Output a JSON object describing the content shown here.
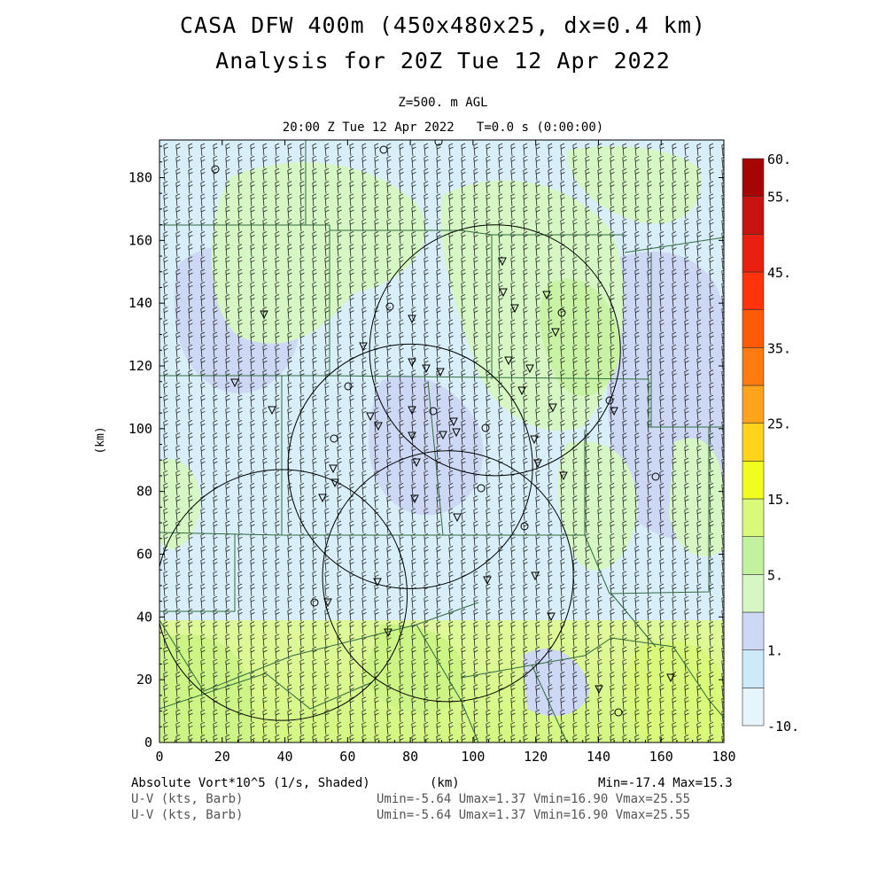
{
  "header": {
    "title_line1": "CASA DFW 400m (450x480x25, dx=0.4 km)",
    "title_line2": "Analysis for 20Z Tue 12 Apr 2022",
    "level": "Z=500. m AGL",
    "time": "20:00 Z Tue 12 Apr 2022   T=0.0 s (0:00:00)"
  },
  "footer": {
    "field1": "Absolute Vort*10^5 (1/s, Shaded)",
    "xunit": "(km)",
    "minmax": "Min=-17.4 Max=15.3",
    "field2": "U-V (kts, Barb)",
    "field3": "U-V (kts, Barb)",
    "uv2": "Umin=-5.64 Umax=1.37 Vmin=16.90 Vmax=25.55",
    "uv3": "Umin=-5.64 Umax=1.37 Vmin=16.90 Vmax=25.55"
  },
  "chart_data": {
    "type": "heatmap",
    "xlabel": "(km)",
    "ylabel": "(km)",
    "xlim": [
      0,
      180
    ],
    "ylim": [
      0,
      192
    ],
    "x_ticks": [
      0,
      20,
      40,
      60,
      80,
      100,
      120,
      140,
      160,
      180
    ],
    "y_ticks": [
      0,
      20,
      40,
      60,
      80,
      100,
      120,
      140,
      160,
      180
    ],
    "field": "Absolute Vort*10^5 (1/s, Shaded)",
    "field_min": -17.4,
    "field_max": 15.3,
    "colorbar": {
      "labels": [
        {
          "text": "60.",
          "level": 15
        },
        {
          "text": "55.",
          "level": 14
        },
        {
          "text": "45.",
          "level": 12
        },
        {
          "text": "35.",
          "level": 10
        },
        {
          "text": "25.",
          "level": 8
        },
        {
          "text": "15.",
          "level": 6
        },
        {
          "text": "5.",
          "level": 4
        },
        {
          "text": "1.",
          "level": 2
        },
        {
          "text": "-10.",
          "level": 0
        }
      ],
      "colors": [
        "#e6f5fb",
        "#cdeaf8",
        "#cdd8f4",
        "#d6f6c4",
        "#c2f29e",
        "#d9f97a",
        "#f1fc1f",
        "#ffd21c",
        "#ffa31c",
        "#ff7b12",
        "#ff5a08",
        "#ff330b",
        "#e91f10",
        "#c8140e",
        "#a50505"
      ]
    },
    "radar_circles": [
      {
        "center_km": [
          107,
          125
        ],
        "radius_km": 40
      },
      {
        "center_km": [
          80,
          88
        ],
        "radius_km": 39
      },
      {
        "center_km": [
          92,
          53
        ],
        "radius_km": 40
      },
      {
        "center_km": [
          39,
          47
        ],
        "radius_km": 40
      }
    ],
    "wind_barbs": {
      "u_range": [
        -5.64,
        1.37
      ],
      "v_range": [
        16.9,
        25.55
      ],
      "units": "kts"
    }
  }
}
